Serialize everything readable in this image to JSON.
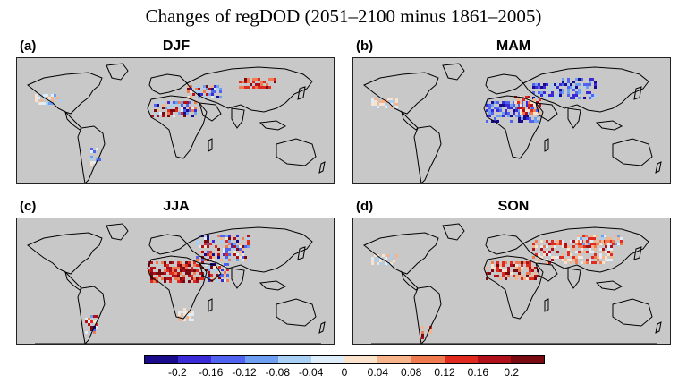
{
  "figure": {
    "title": "Changes of regDOD (2051–2100 minus 1861–2005)"
  },
  "panels": [
    {
      "label": "(a)",
      "season": "DJF"
    },
    {
      "label": "(b)",
      "season": "MAM"
    },
    {
      "label": "(c)",
      "season": "JJA"
    },
    {
      "label": "(d)",
      "season": "SON"
    }
  ],
  "colorbar": {
    "ticks": [
      "-0.2",
      "-0.16",
      "-0.12",
      "-0.08",
      "-0.04",
      "0",
      "0.04",
      "0.08",
      "0.12",
      "0.16",
      "0.2"
    ],
    "colors": [
      "#1a0a8c",
      "#3b2bd6",
      "#4f63f0",
      "#6d9ef2",
      "#a8d0f5",
      "#ddeefa",
      "#fae2cc",
      "#f7b48a",
      "#f07a4f",
      "#e0291f",
      "#b0101a",
      "#7a0a12"
    ]
  },
  "colors": {
    "ocean": "#c8c8c8",
    "coast": "#000000"
  }
}
